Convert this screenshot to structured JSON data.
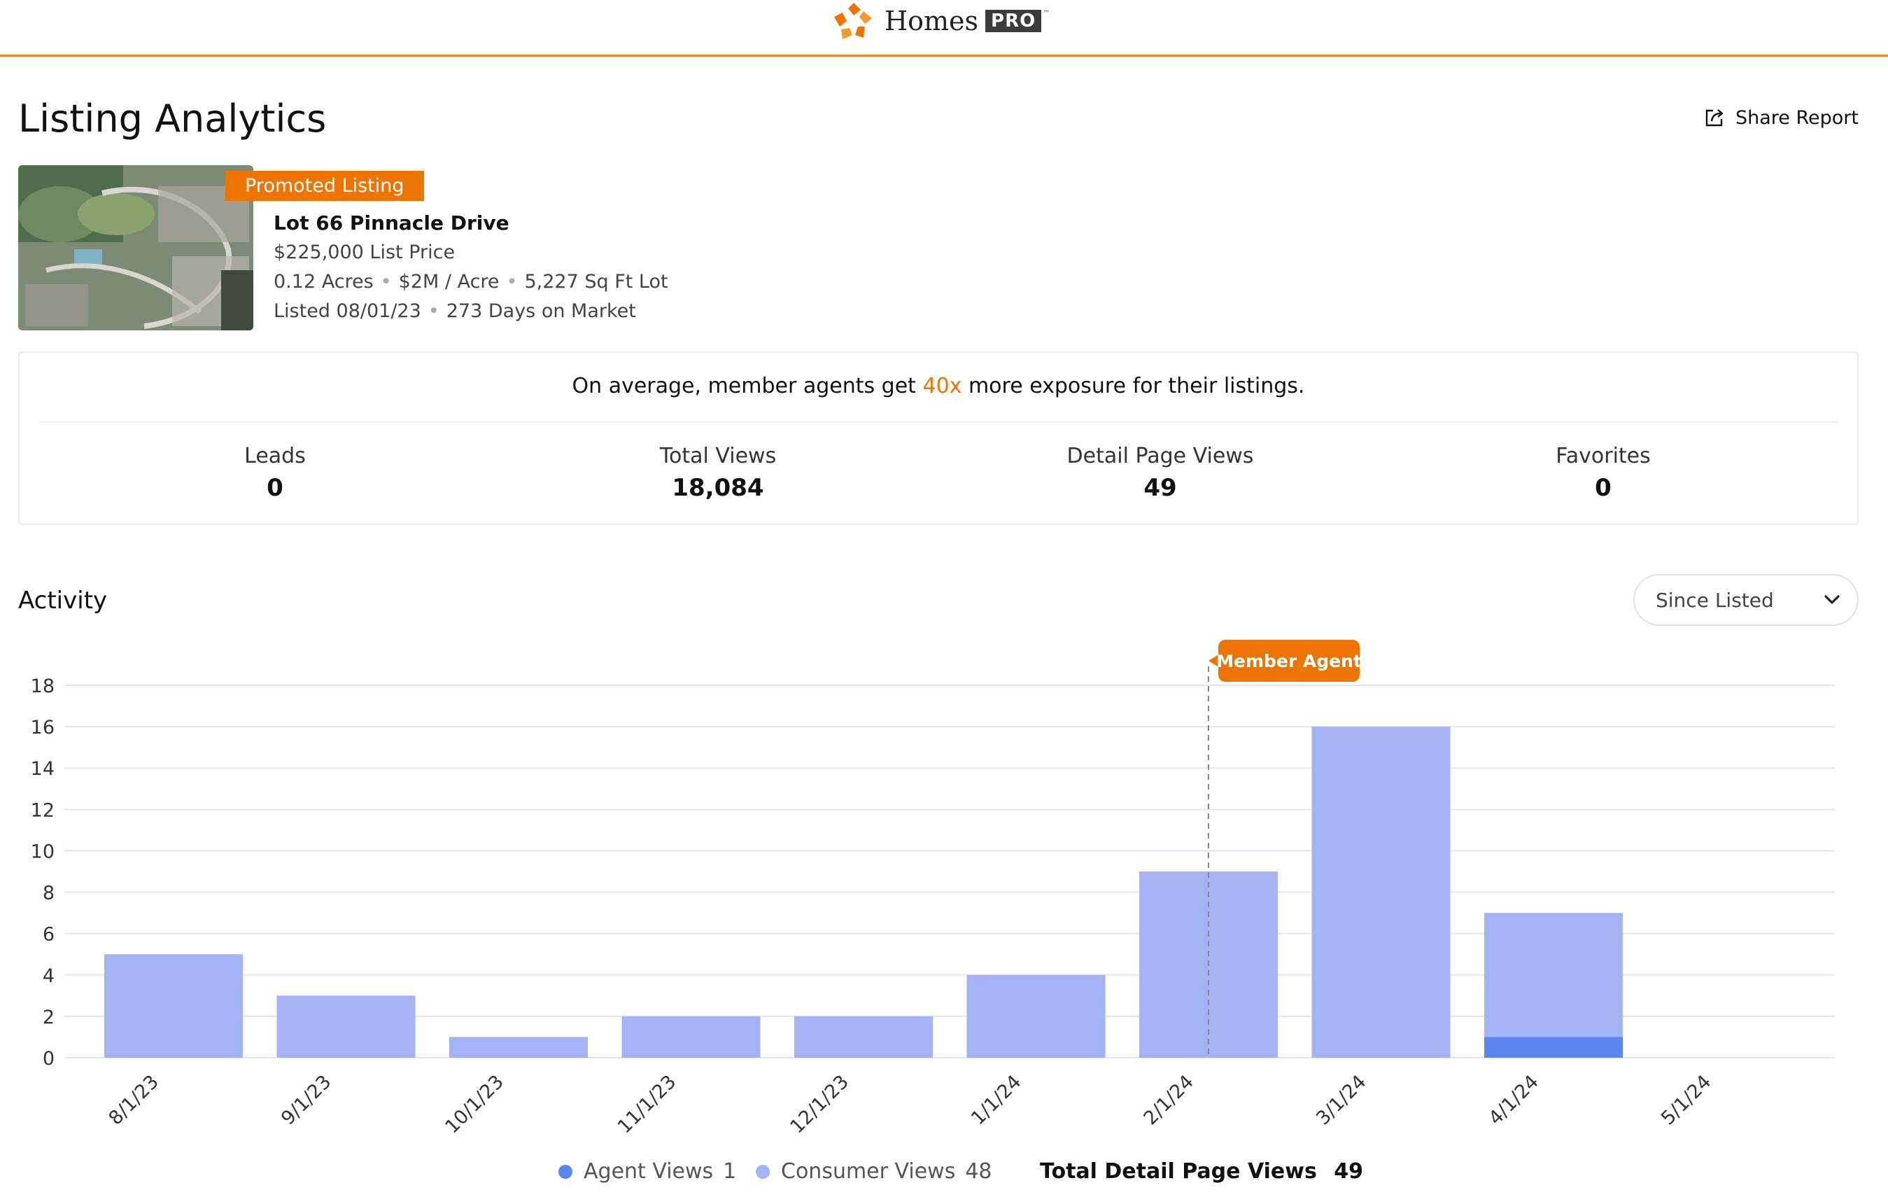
{
  "header": {
    "logo_text": "Homes",
    "logo_pro": "PRO",
    "logo_tm": "™",
    "logo_icon": "homes-logo-icon",
    "accent_color": "#e8891f"
  },
  "page": {
    "title": "Listing Analytics",
    "share_label": "Share Report",
    "share_icon": "share-icon"
  },
  "listing": {
    "badge": "Promoted Listing",
    "address": "Lot 66 Pinnacle Drive",
    "price": "$225,000 List Price",
    "acres": "0.12 Acres",
    "price_per_acre": "$2M / Acre",
    "lot_size": "5,227 Sq Ft Lot",
    "listed": "Listed 08/01/23",
    "days_on_market": "273 Days on Market",
    "badge_color": "#ee7400"
  },
  "exposure": {
    "prefix": "On average, member agents get ",
    "highlight": "40x",
    "suffix": " more exposure for their listings."
  },
  "stats": [
    {
      "label": "Leads",
      "value": "0"
    },
    {
      "label": "Total Views",
      "value": "18,084"
    },
    {
      "label": "Detail Page Views",
      "value": "49"
    },
    {
      "label": "Favorites",
      "value": "0"
    }
  ],
  "activity": {
    "title": "Activity",
    "range_selected": "Since Listed"
  },
  "chart_data": {
    "type": "bar",
    "stacked": true,
    "categories": [
      "8/1/23",
      "9/1/23",
      "10/1/23",
      "11/1/23",
      "12/1/23",
      "1/1/24",
      "2/1/24",
      "3/1/24",
      "4/1/24",
      "5/1/24"
    ],
    "series": [
      {
        "name": "Agent Views",
        "values": [
          0,
          0,
          0,
          0,
          0,
          0,
          0,
          0,
          1,
          0
        ],
        "color": "#5b86f0"
      },
      {
        "name": "Consumer Views",
        "values": [
          5,
          3,
          1,
          2,
          2,
          4,
          9,
          16,
          6,
          0
        ],
        "color": "#a4b2f6"
      }
    ],
    "yticks": [
      0,
      2,
      4,
      6,
      8,
      10,
      12,
      14,
      16,
      18
    ],
    "ylim": [
      0,
      18
    ],
    "grid": true,
    "annotation": {
      "label": "Member Agent",
      "category": "2/1/24",
      "color": "#ee7400"
    }
  },
  "legend": {
    "agent_label": "Agent Views",
    "agent_value": "1",
    "consumer_label": "Consumer Views",
    "consumer_value": "48",
    "total_label": "Total Detail Page Views",
    "total_value": "49"
  }
}
